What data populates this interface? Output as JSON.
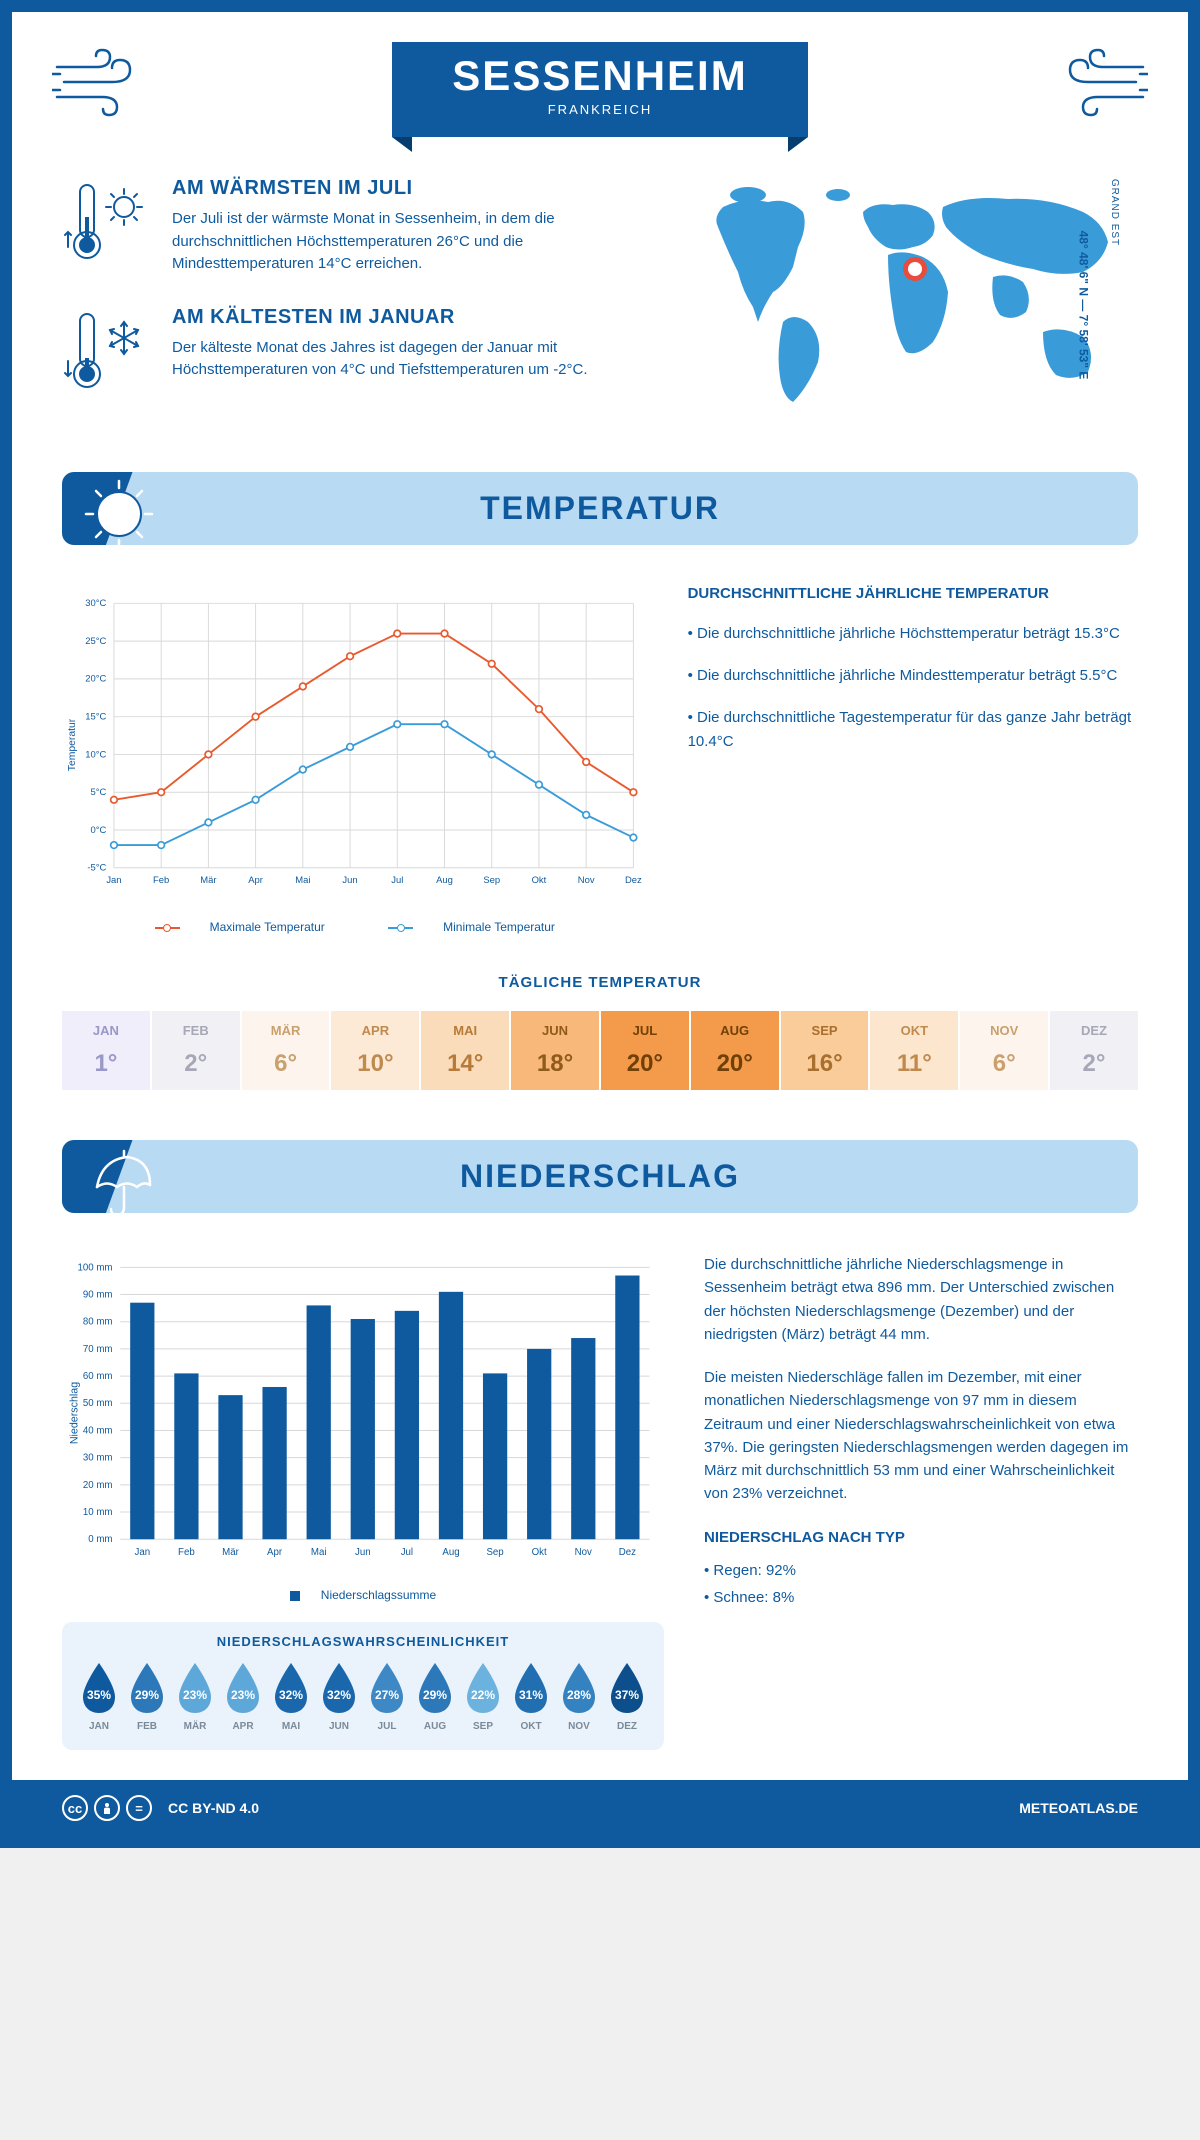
{
  "header": {
    "city": "SESSENHEIM",
    "country": "FRANKREICH"
  },
  "location": {
    "coords": "48° 48' 6\" N — 7° 58' 53\" E",
    "region": "GRAND EST"
  },
  "warmest": {
    "title": "AM WÄRMSTEN IM JULI",
    "text": "Der Juli ist der wärmste Monat in Sessenheim, in dem die durchschnittlichen Höchsttemperaturen 26°C und die Mindesttemperaturen 14°C erreichen."
  },
  "coldest": {
    "title": "AM KÄLTESTEN IM JANUAR",
    "text": "Der kälteste Monat des Jahres ist dagegen der Januar mit Höchsttemperaturen von 4°C und Tiefsttemperaturen um -2°C."
  },
  "temp_section": {
    "title": "TEMPERATUR",
    "info_title": "DURCHSCHNITTLICHE JÄHRLICHE TEMPERATUR",
    "bullets": [
      "• Die durchschnittliche jährliche Höchsttemperatur beträgt 15.3°C",
      "• Die durchschnittliche jährliche Mindesttemperatur beträgt 5.5°C",
      "• Die durchschnittliche Tagestemperatur für das ganze Jahr beträgt 10.4°C"
    ],
    "legend_max": "Maximale Temperatur",
    "legend_min": "Minimale Temperatur",
    "daily_title": "TÄGLICHE TEMPERATUR"
  },
  "temp_chart": {
    "months": [
      "Jan",
      "Feb",
      "Mär",
      "Apr",
      "Mai",
      "Jun",
      "Jul",
      "Aug",
      "Sep",
      "Okt",
      "Nov",
      "Dez"
    ],
    "max": [
      4,
      5,
      10,
      15,
      19,
      23,
      26,
      26,
      22,
      16,
      9,
      5
    ],
    "min": [
      -2,
      -2,
      1,
      4,
      8,
      11,
      14,
      14,
      10,
      6,
      2,
      -1
    ],
    "ylim": [
      -5,
      30
    ],
    "ytick_step": 5,
    "max_color": "#e85a2e",
    "min_color": "#3a9bd9",
    "grid_color": "#d8d8d8",
    "y_label": "Temperatur"
  },
  "heatmap": {
    "months": [
      "JAN",
      "FEB",
      "MÄR",
      "APR",
      "MAI",
      "JUN",
      "JUL",
      "AUG",
      "SEP",
      "OKT",
      "NOV",
      "DEZ"
    ],
    "values": [
      "1°",
      "2°",
      "6°",
      "10°",
      "14°",
      "18°",
      "20°",
      "20°",
      "16°",
      "11°",
      "6°",
      "2°"
    ],
    "bg_colors": [
      "#efeefa",
      "#f1f1f5",
      "#fdf5ed",
      "#fce9d6",
      "#fadcba",
      "#f7b87a",
      "#f39b4a",
      "#f39b4a",
      "#f9cc9a",
      "#fce6cd",
      "#fdf5ed",
      "#f1f1f5"
    ],
    "text_colors": [
      "#9a97c9",
      "#a7a7b7",
      "#c9a06e",
      "#c08a4f",
      "#b87a38",
      "#8f5a1a",
      "#704008",
      "#704008",
      "#a86f2e",
      "#c08a4f",
      "#c9a06e",
      "#a7a7b7"
    ]
  },
  "precip_section": {
    "title": "NIEDERSCHLAG",
    "para1": "Die durchschnittliche jährliche Niederschlagsmenge in Sessenheim beträgt etwa 896 mm. Der Unterschied zwischen der höchsten Niederschlagsmenge (Dezember) und der niedrigsten (März) beträgt 44 mm.",
    "para2": "Die meisten Niederschläge fallen im Dezember, mit einer monatlichen Niederschlagsmenge von 97 mm in diesem Zeitraum und einer Niederschlagswahrscheinlichkeit von etwa 37%. Die geringsten Niederschlagsmengen werden dagegen im März mit durchschnittlich 53 mm und einer Wahrscheinlichkeit von 23% verzeichnet.",
    "type_title": "NIEDERSCHLAG NACH TYP",
    "type_rain": "• Regen: 92%",
    "type_snow": "• Schnee: 8%",
    "legend": "Niederschlagssumme"
  },
  "precip_chart": {
    "months": [
      "Jan",
      "Feb",
      "Mär",
      "Apr",
      "Mai",
      "Jun",
      "Jul",
      "Aug",
      "Sep",
      "Okt",
      "Nov",
      "Dez"
    ],
    "values": [
      87,
      61,
      53,
      56,
      86,
      81,
      84,
      91,
      61,
      70,
      74,
      97
    ],
    "ylim": [
      0,
      100
    ],
    "ytick_step": 10,
    "bar_color": "#0f5a9e",
    "grid_color": "#d8d8d8",
    "y_label": "Niederschlag"
  },
  "probability": {
    "title": "NIEDERSCHLAGSWAHRSCHEINLICHKEIT",
    "months": [
      "JAN",
      "FEB",
      "MÄR",
      "APR",
      "MAI",
      "JUN",
      "JUL",
      "AUG",
      "SEP",
      "OKT",
      "NOV",
      "DEZ"
    ],
    "values": [
      "35%",
      "29%",
      "23%",
      "23%",
      "32%",
      "32%",
      "27%",
      "29%",
      "22%",
      "31%",
      "28%",
      "37%"
    ],
    "colors": [
      "#0f5a9e",
      "#2d78b8",
      "#5ea8d9",
      "#5ea8d9",
      "#1a68ab",
      "#1a68ab",
      "#3d88c5",
      "#2d78b8",
      "#6cb2de",
      "#216fb1",
      "#3482c0",
      "#0c4f8c"
    ]
  },
  "footer": {
    "license": "CC BY-ND 4.0",
    "site": "METEOATLAS.DE"
  }
}
